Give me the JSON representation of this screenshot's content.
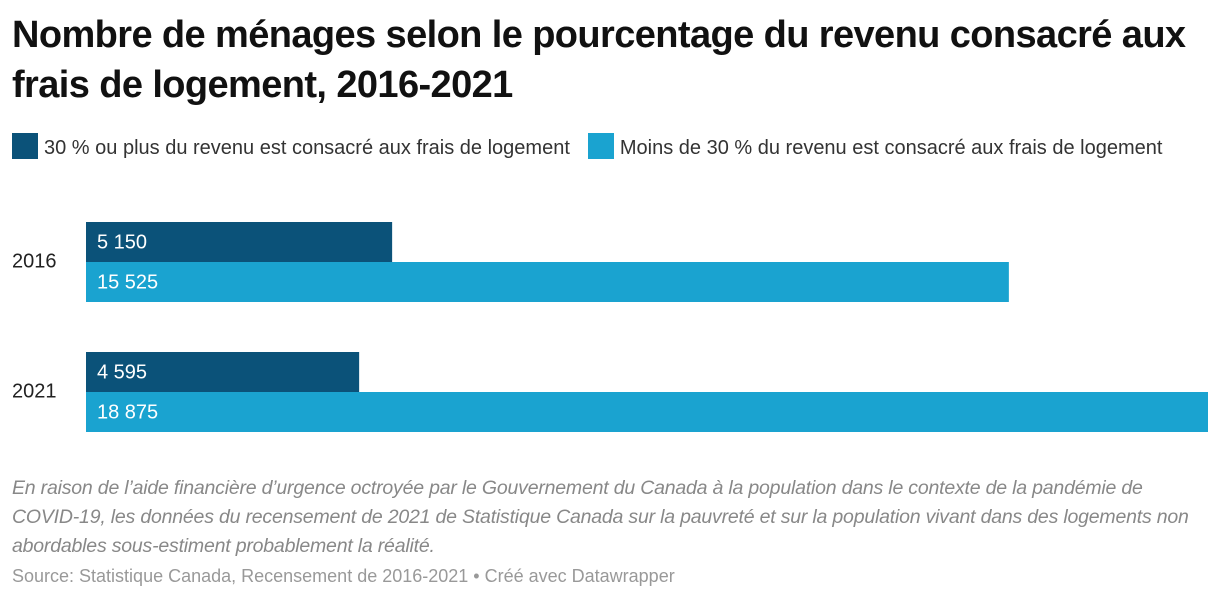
{
  "chart_data": {
    "type": "bar",
    "orientation": "horizontal",
    "title": "Nombre de ménages selon le pourcentage du revenu consacré aux frais de logement, 2016-2021",
    "categories": [
      "2016",
      "2021"
    ],
    "series": [
      {
        "name": "30 % ou plus du revenu est consacré aux frais de logement",
        "color": "#0b5279",
        "values": [
          5150,
          4595
        ],
        "value_labels": [
          "5 150",
          "4 595"
        ]
      },
      {
        "name": "Moins de 30 % du revenu est consacré aux frais de logement",
        "color": "#1aa3d0",
        "values": [
          15525,
          18875
        ],
        "value_labels": [
          "15 525",
          "18 875"
        ]
      }
    ],
    "notes": "En raison de l’aide financière d’urgence octroyée par le Gouvernement du Canada à la population dans le contexte de la pandémie de COVID-19, les données du recensement de 2021 de Statistique Canada sur la pauvreté et sur la population vivant dans des logements non abordables sous-estiment probablement la réalité.",
    "source": "Source: Statistique Canada, Recensement de 2016-2021 • Créé avec Datawrapper"
  }
}
